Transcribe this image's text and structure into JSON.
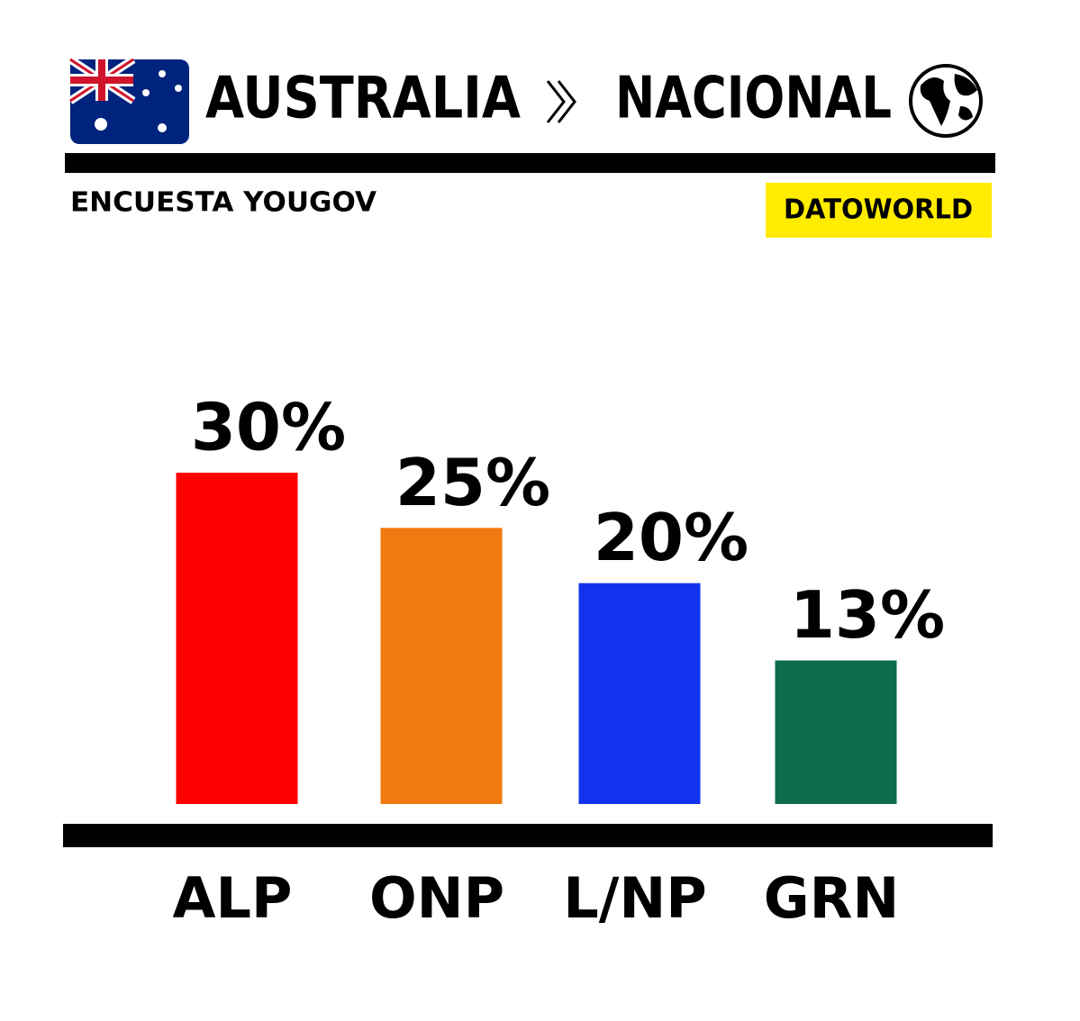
{
  "chart_data": {
    "type": "bar",
    "title": "AUSTRALIA",
    "region": "NACIONAL",
    "subtitle": "ENCUESTA YOUGOV",
    "source": "DATOWORLD",
    "categories": [
      "ALP",
      "ONP",
      "L/NP",
      "GRN"
    ],
    "values": [
      30,
      25,
      20,
      13
    ],
    "value_labels": [
      "30%",
      "25%",
      "20%",
      "13%"
    ],
    "colors": [
      "#ff0000",
      "#f07a10",
      "#1133ee",
      "#0e6b4c"
    ]
  }
}
